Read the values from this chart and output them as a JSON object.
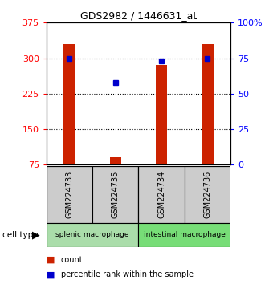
{
  "title": "GDS2982 / 1446631_at",
  "samples": [
    "GSM224733",
    "GSM224735",
    "GSM224734",
    "GSM224736"
  ],
  "counts": [
    330,
    90,
    285,
    330
  ],
  "percentile_ranks": [
    75,
    58,
    73,
    75
  ],
  "ylim_left": [
    75,
    375
  ],
  "ylim_right": [
    0,
    100
  ],
  "yticks_left": [
    75,
    150,
    225,
    300,
    375
  ],
  "yticks_right": [
    0,
    25,
    50,
    75,
    100
  ],
  "grid_values": [
    150,
    225,
    300
  ],
  "bar_color": "#cc2200",
  "dot_color": "#0000cc",
  "cell_types": [
    "splenic macrophage",
    "intestinal macrophage"
  ],
  "cell_type_colors": [
    "#aaddaa",
    "#77dd77"
  ],
  "sample_box_color": "#cccccc",
  "legend_count_color": "#cc2200",
  "legend_pct_color": "#0000cc",
  "bar_width": 0.25
}
